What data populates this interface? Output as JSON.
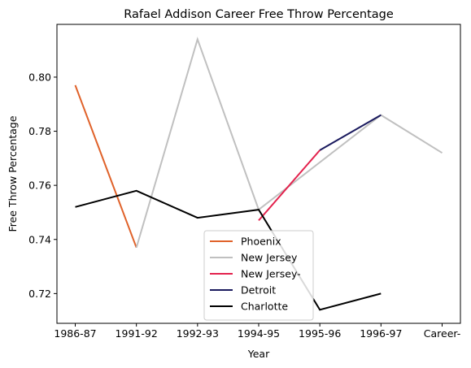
{
  "chart_data": {
    "type": "line",
    "title": "Rafael Addison Career Free Throw Percentage",
    "xlabel": "Year",
    "ylabel": "Free Throw Percentage",
    "categories": [
      "1986-87",
      "1991-92",
      "1992-93",
      "1994-95",
      "1995-96",
      "1996-97",
      "Career-"
    ],
    "ylim": [
      0.709,
      0.8195
    ],
    "yticks": [
      0.72,
      0.74,
      0.76,
      0.78,
      0.8
    ],
    "ytick_labels": [
      "0.72",
      "0.74",
      "0.76",
      "0.78",
      "0.80"
    ],
    "grid": false,
    "legend_position": "bottom-center",
    "series": [
      {
        "name": "Phoenix",
        "color": "#e0622a",
        "points": [
          [
            "1986-87",
            0.797
          ],
          [
            "1991-92",
            0.737
          ]
        ]
      },
      {
        "name": "New Jersey",
        "color": "#c0c0c0",
        "points": [
          [
            "1991-92",
            0.737
          ],
          [
            "1992-93",
            0.814
          ],
          [
            "1994-95",
            0.751
          ],
          [
            "1996-97",
            0.786
          ],
          [
            "Career-",
            0.772
          ]
        ]
      },
      {
        "name": "New Jersey-",
        "color": "#e3224d",
        "points": [
          [
            "1994-95",
            0.747
          ],
          [
            "1995-96",
            0.773
          ]
        ]
      },
      {
        "name": "Detroit",
        "color": "#1a1a5e",
        "points": [
          [
            "1995-96",
            0.773
          ],
          [
            "1996-97",
            0.786
          ]
        ]
      },
      {
        "name": "Charlotte",
        "color": "#000000",
        "points": [
          [
            "1986-87",
            0.752
          ],
          [
            "1991-92",
            0.758
          ],
          [
            "1992-93",
            0.748
          ],
          [
            "1994-95",
            0.751
          ],
          [
            "1995-96",
            0.714
          ],
          [
            "1996-97",
            0.72
          ]
        ]
      }
    ]
  }
}
